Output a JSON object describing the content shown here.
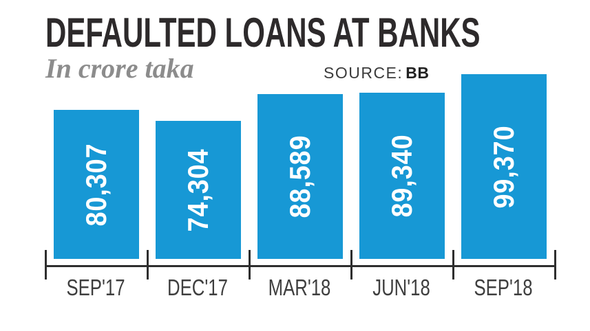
{
  "header": {
    "title": "DEFAULTED LOANS AT BANKS",
    "subtitle": "In crore taka",
    "source_label": "SOURCE:",
    "source_value": "BB"
  },
  "chart_data": {
    "type": "bar",
    "categories": [
      "SEP'17",
      "DEC'17",
      "MAR'18",
      "JUN'18",
      "SEP'18"
    ],
    "values": [
      80307,
      74304,
      88589,
      89340,
      99370
    ],
    "value_labels": [
      "80,307",
      "74,304",
      "88,589",
      "89,340",
      "99,370"
    ],
    "title": "DEFAULTED LOANS AT BANKS",
    "xlabel": "",
    "ylabel": "In crore taka",
    "ylim": [
      0,
      99370
    ],
    "grid": false,
    "legend": "none",
    "value_label_rotation": -90
  },
  "colors": {
    "bar": "#1798d5",
    "bar_value_text": "#ffffff",
    "axis": "#2e2e2e",
    "title_text": "#2d2a2b",
    "subtitle_text": "#8c8c8c",
    "x_label_text": "#3e3e3e",
    "background": "#ffffff"
  }
}
